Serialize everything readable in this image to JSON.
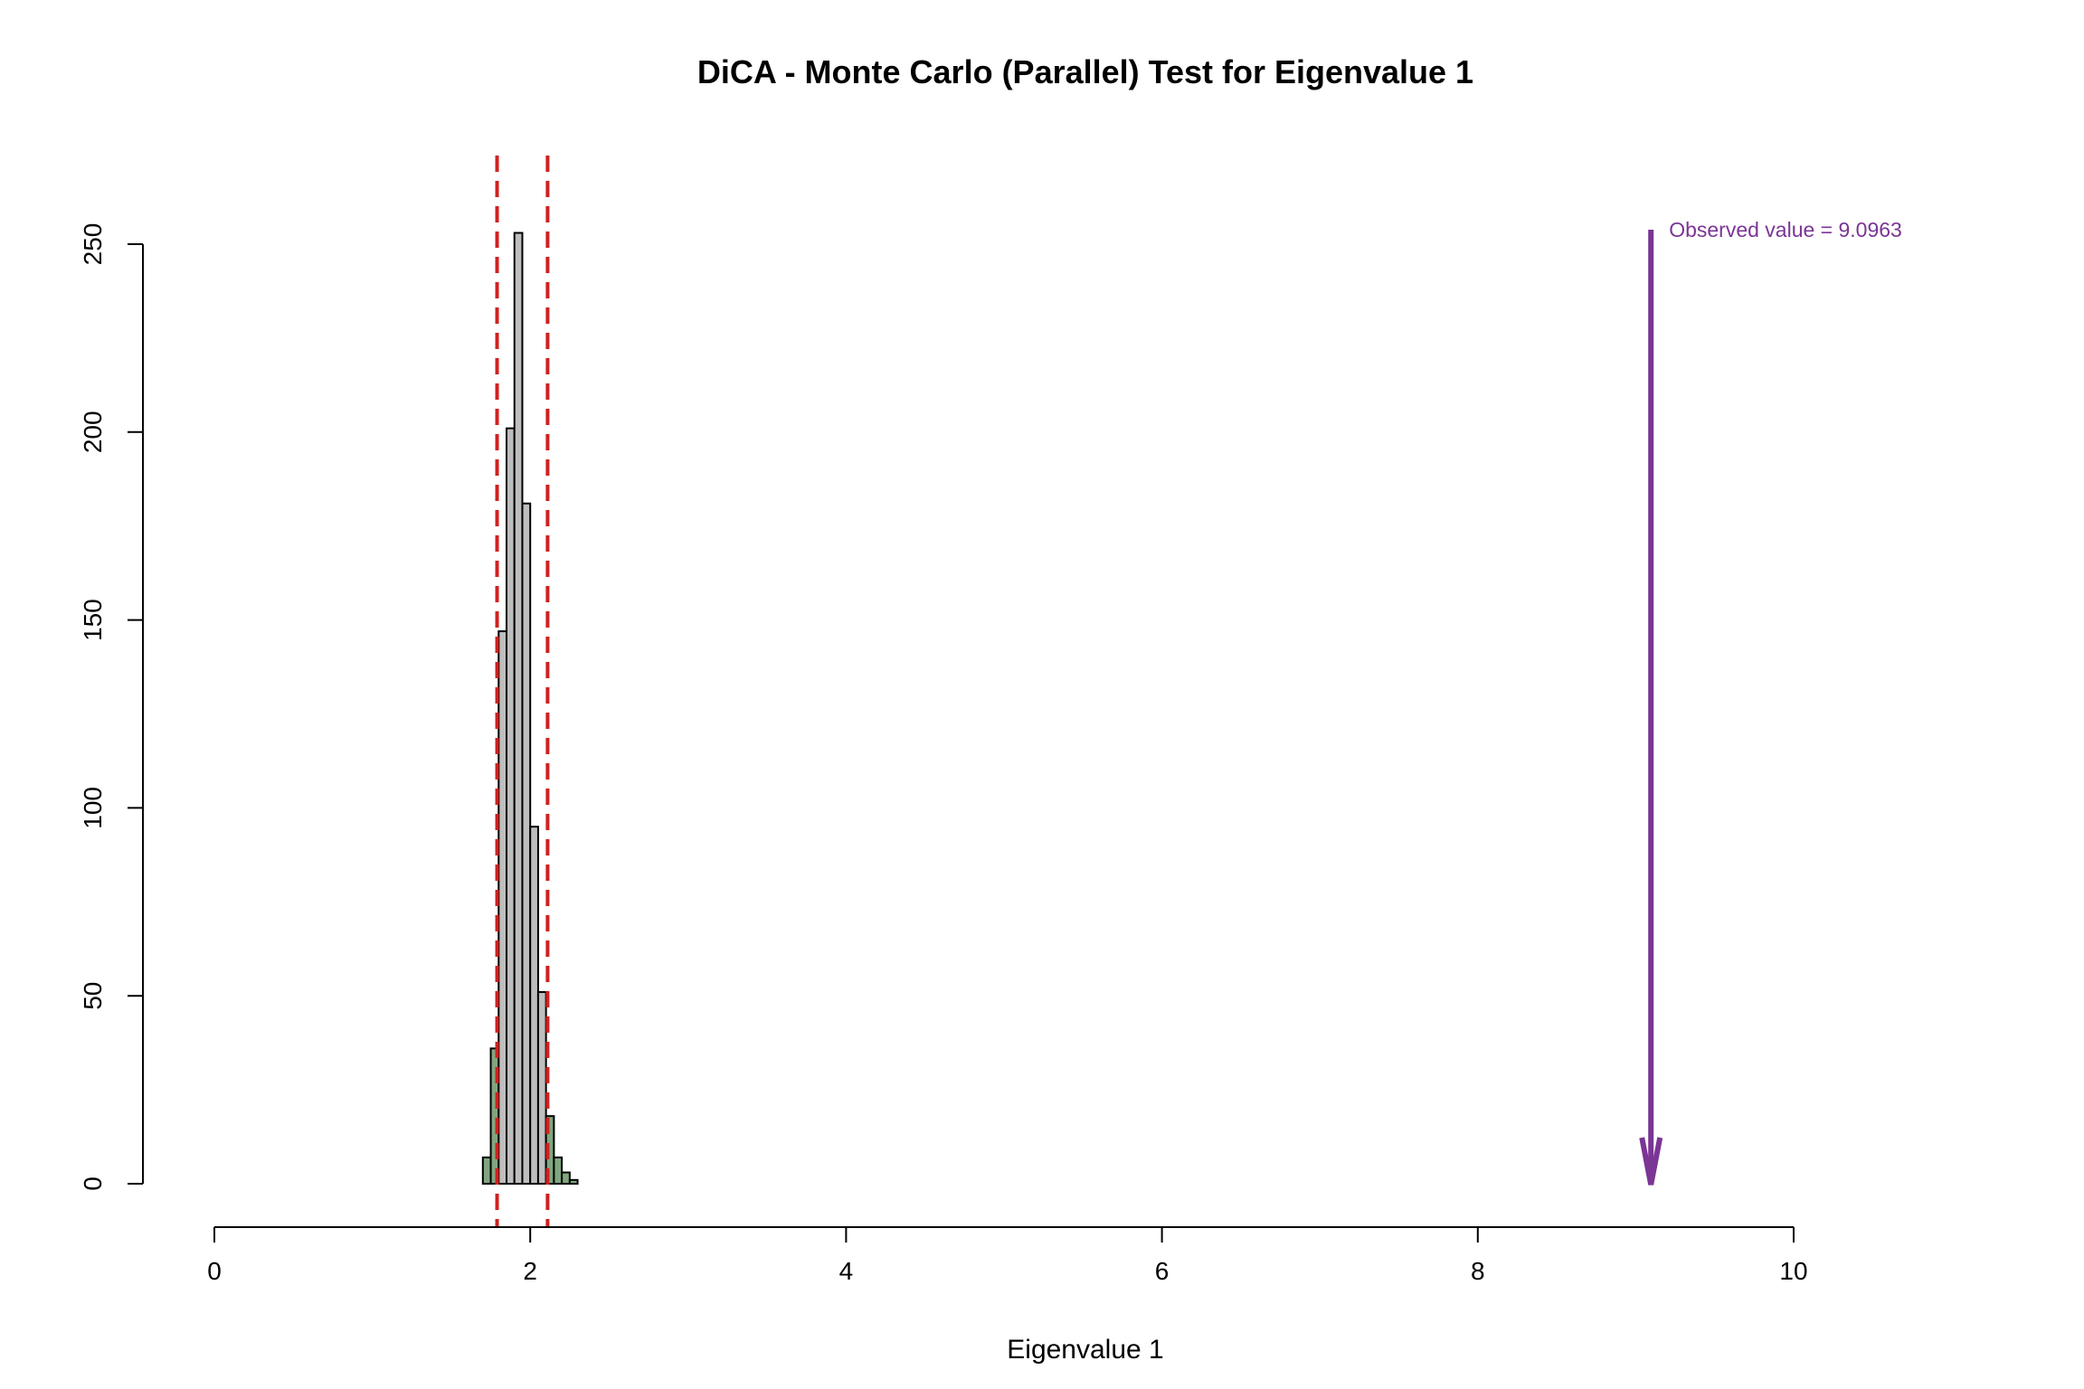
{
  "chart_data": {
    "type": "bar",
    "subtype": "histogram",
    "title": "DiCA - Monte Carlo (Parallel) Test for Eigenvalue 1",
    "xlabel": "Eigenvalue 1",
    "ylabel": "",
    "xlim": [
      0,
      10
    ],
    "ylim": [
      0,
      250
    ],
    "x_ticks": [
      "0",
      "2",
      "4",
      "6",
      "8",
      "10"
    ],
    "y_ticks": [
      "0",
      "50",
      "100",
      "150",
      "200",
      "250"
    ],
    "grid": false,
    "legend": "none",
    "bin_width": 0.05,
    "bins": [
      {
        "start": 1.7,
        "count": 7,
        "tail": true
      },
      {
        "start": 1.75,
        "count": 36,
        "tail": true
      },
      {
        "start": 1.8,
        "count": 147,
        "tail": false
      },
      {
        "start": 1.85,
        "count": 201,
        "tail": false
      },
      {
        "start": 1.9,
        "count": 253,
        "tail": false
      },
      {
        "start": 1.95,
        "count": 181,
        "tail": false
      },
      {
        "start": 2.0,
        "count": 95,
        "tail": false
      },
      {
        "start": 2.05,
        "count": 51,
        "tail": false
      },
      {
        "start": 2.1,
        "count": 18,
        "tail": true
      },
      {
        "start": 2.15,
        "count": 7,
        "tail": true
      },
      {
        "start": 2.2,
        "count": 3,
        "tail": true
      },
      {
        "start": 2.25,
        "count": 1,
        "tail": true
      }
    ],
    "cutoffs": [
      1.79,
      2.11
    ],
    "observed": {
      "value": 9.0963,
      "label": "Observed value = 9.0963"
    },
    "colors": {
      "bin_fill": "#bebebe",
      "tail_fill": "#7fa67f",
      "bin_stroke": "#000000",
      "cutoff_line": "#d02020",
      "observed_arrow": "#7b3594"
    }
  }
}
